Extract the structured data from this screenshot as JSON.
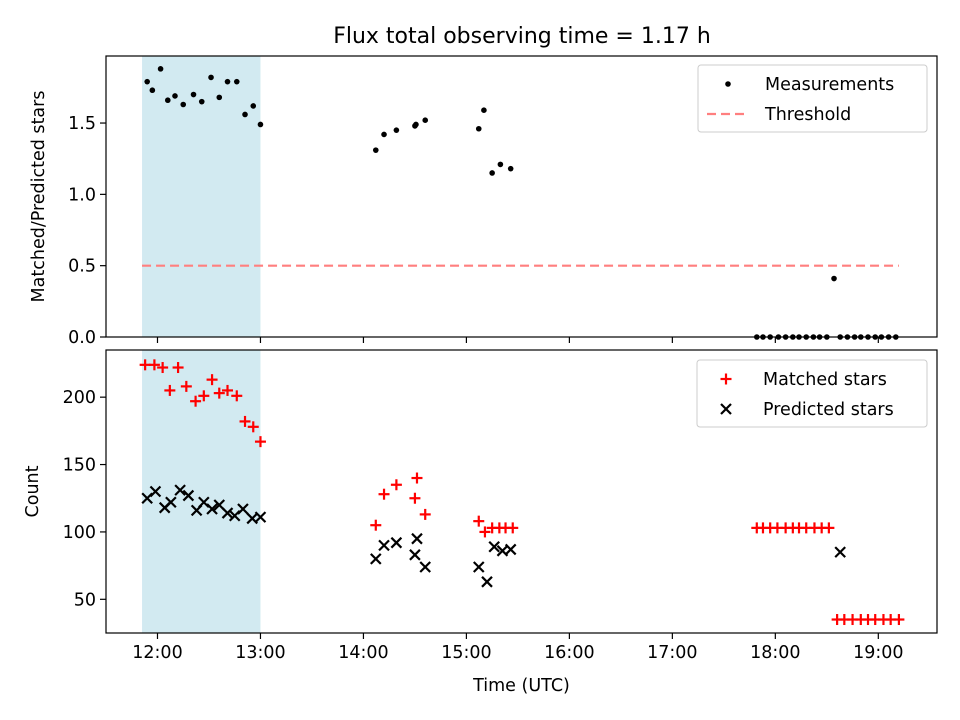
{
  "title": "Flux total observing time = 1.17 h",
  "colors": {
    "shade": "#add8e6",
    "threshold": "#ff7f7f",
    "matched": "#ff0000",
    "predicted": "#000000",
    "measurements": "#000000"
  },
  "chart_data": [
    {
      "type": "scatter",
      "panel": "top",
      "ylabel": "Matched/Predicted stars",
      "xlim": [
        11.5,
        19.57
      ],
      "ylim": [
        0,
        1.97
      ],
      "yticks": [
        0.0,
        0.5,
        1.0,
        1.5
      ],
      "ytick_labels": [
        "0.0",
        "0.5",
        "1.0",
        "1.5"
      ],
      "xtick_labels_shown": false,
      "legend_position": "top-right",
      "shaded_interval": [
        11.85,
        13.0
      ],
      "threshold": {
        "name": "Threshold",
        "value": 0.5,
        "x_range": [
          11.85,
          19.2
        ],
        "style": "dashed"
      },
      "series": [
        {
          "name": "Measurements",
          "marker": "dot",
          "x": [
            11.9,
            11.95,
            12.03,
            12.1,
            12.17,
            12.25,
            12.35,
            12.43,
            12.52,
            12.6,
            12.68,
            12.77,
            12.85,
            12.93,
            13.0,
            14.12,
            14.2,
            14.32,
            14.5,
            14.51,
            14.6,
            15.12,
            15.17,
            15.25,
            15.33,
            15.43,
            17.82,
            17.88,
            17.95,
            18.03,
            18.1,
            18.17,
            18.23,
            18.3,
            18.37,
            18.43,
            18.5,
            18.57,
            18.63,
            18.7,
            18.77,
            18.83,
            18.9,
            18.97,
            19.03,
            19.1,
            19.17
          ],
          "y": [
            1.79,
            1.73,
            1.88,
            1.66,
            1.69,
            1.63,
            1.7,
            1.65,
            1.82,
            1.68,
            1.79,
            1.79,
            1.56,
            1.62,
            1.49,
            1.31,
            1.42,
            1.45,
            1.48,
            1.49,
            1.52,
            1.46,
            1.59,
            1.15,
            1.21,
            1.18,
            0,
            0,
            0,
            0,
            0,
            0,
            0,
            0,
            0,
            0,
            0,
            0.41,
            0,
            0,
            0,
            0,
            0,
            0,
            0,
            0,
            0
          ]
        }
      ]
    },
    {
      "type": "scatter",
      "panel": "bottom",
      "xlabel": "Time (UTC)",
      "ylabel": "Count",
      "xlim": [
        11.5,
        19.57
      ],
      "ylim": [
        25,
        235
      ],
      "xticks": [
        12,
        13,
        14,
        15,
        16,
        17,
        18,
        19
      ],
      "xtick_labels": [
        "12:00",
        "13:00",
        "14:00",
        "15:00",
        "16:00",
        "17:00",
        "18:00",
        "19:00"
      ],
      "yticks": [
        50,
        100,
        150,
        200
      ],
      "ytick_labels": [
        "50",
        "100",
        "150",
        "200"
      ],
      "legend_position": "top-right",
      "shaded_interval": [
        11.85,
        13.0
      ],
      "series": [
        {
          "name": "Matched stars",
          "marker": "plus",
          "x": [
            11.88,
            11.97,
            12.05,
            12.12,
            12.2,
            12.28,
            12.37,
            12.45,
            12.53,
            12.6,
            12.68,
            12.77,
            12.85,
            12.93,
            13.0,
            14.12,
            14.2,
            14.32,
            14.5,
            14.52,
            14.6,
            15.12,
            15.18,
            15.25,
            15.32,
            15.38,
            15.45,
            17.82,
            17.88,
            17.95,
            18.02,
            18.1,
            18.17,
            18.23,
            18.3,
            18.38,
            18.45,
            18.52,
            18.6,
            18.67,
            18.75,
            18.83,
            18.9,
            18.97,
            19.05,
            19.12,
            19.2
          ],
          "y": [
            224,
            224,
            222,
            205,
            222,
            208,
            197,
            201,
            213,
            203,
            205,
            201,
            182,
            178,
            167,
            105,
            128,
            135,
            125,
            140,
            113,
            108,
            100,
            103,
            103,
            103,
            103,
            103,
            103,
            103,
            103,
            103,
            103,
            103,
            103,
            103,
            103,
            103,
            35,
            35,
            35,
            35,
            35,
            35,
            35,
            35,
            35
          ]
        },
        {
          "name": "Predicted stars",
          "marker": "x",
          "x": [
            11.9,
            11.98,
            12.07,
            12.13,
            12.22,
            12.3,
            12.38,
            12.45,
            12.53,
            12.6,
            12.68,
            12.75,
            12.83,
            12.92,
            13.0,
            14.12,
            14.2,
            14.32,
            14.5,
            14.52,
            14.6,
            15.12,
            15.2,
            15.27,
            15.35,
            15.43,
            18.63
          ],
          "y": [
            125,
            130,
            118,
            122,
            131,
            127,
            116,
            122,
            117,
            120,
            114,
            112,
            117,
            110,
            111,
            80,
            90,
            92,
            83,
            95,
            74,
            74,
            63,
            89,
            86,
            87,
            85
          ]
        }
      ]
    }
  ]
}
